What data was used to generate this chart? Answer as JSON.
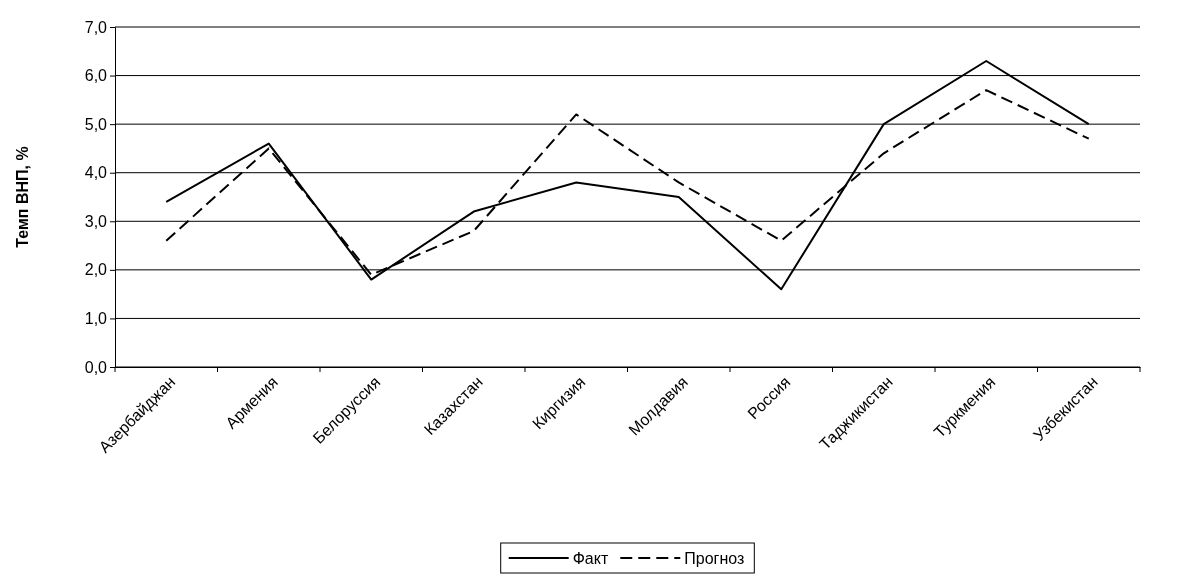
{
  "chart_data": {
    "type": "line",
    "ylabel": "Темп ВНП, %",
    "categories": [
      "Азербайджан",
      "Армения",
      "Белоруссия",
      "Казахстан",
      "Киргизия",
      "Молдавия",
      "Россия",
      "Таджикистан",
      "Туркмения",
      "Узбекистан"
    ],
    "series": [
      {
        "name": "Факт",
        "color": "#000000",
        "line_style": "solid",
        "values": [
          3.4,
          4.6,
          1.8,
          3.2,
          3.8,
          3.5,
          1.6,
          5.0,
          6.3,
          5.0
        ]
      },
      {
        "name": "Прогноз",
        "color": "#000000",
        "line_style": "dashed",
        "values": [
          2.6,
          4.5,
          1.9,
          2.8,
          5.2,
          3.8,
          2.6,
          4.4,
          5.7,
          4.7
        ]
      }
    ],
    "ylim": [
      0,
      7
    ],
    "yticks": [
      {
        "value": 0,
        "label": "0,0"
      },
      {
        "value": 1,
        "label": "1,0"
      },
      {
        "value": 2,
        "label": "2,0"
      },
      {
        "value": 3,
        "label": "3,0"
      },
      {
        "value": 4,
        "label": "4,0"
      },
      {
        "value": 5,
        "label": "5,0"
      },
      {
        "value": 6,
        "label": "6,0"
      },
      {
        "value": 7,
        "label": "7,0"
      }
    ],
    "grid": "y",
    "legend": "bottom",
    "marker": "none"
  }
}
